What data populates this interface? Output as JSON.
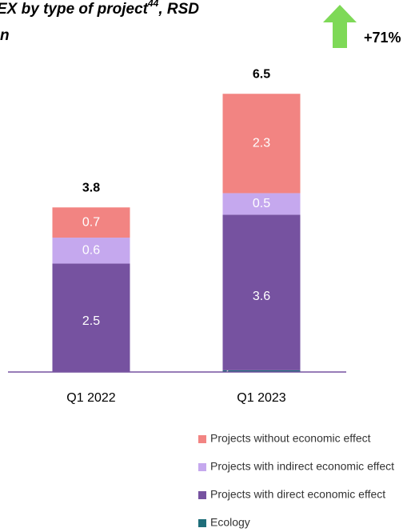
{
  "chart_data": {
    "type": "stacked_bar",
    "title": {
      "line1": "EX by type of project",
      "superscript": "44",
      "line1_end": ", RSD",
      "line2": "n"
    },
    "annotation": "+71%",
    "categories": [
      "Q1 2022",
      "Q1 2023"
    ],
    "series": [
      {
        "name": "Ecology",
        "color": "#1f6e7a",
        "values": [
          0.01,
          0.04
        ]
      },
      {
        "name": "Projects with direct economic effect",
        "color": "#7652a0",
        "values": [
          2.5,
          3.6
        ]
      },
      {
        "name": "Projects with indirect economic effect",
        "color": "#c5a8ee",
        "values": [
          0.6,
          0.5
        ]
      },
      {
        "name": "Projects without economic effect",
        "color": "#f28482",
        "values": [
          0.7,
          2.3
        ]
      }
    ],
    "totals": [
      3.8,
      6.5
    ]
  }
}
